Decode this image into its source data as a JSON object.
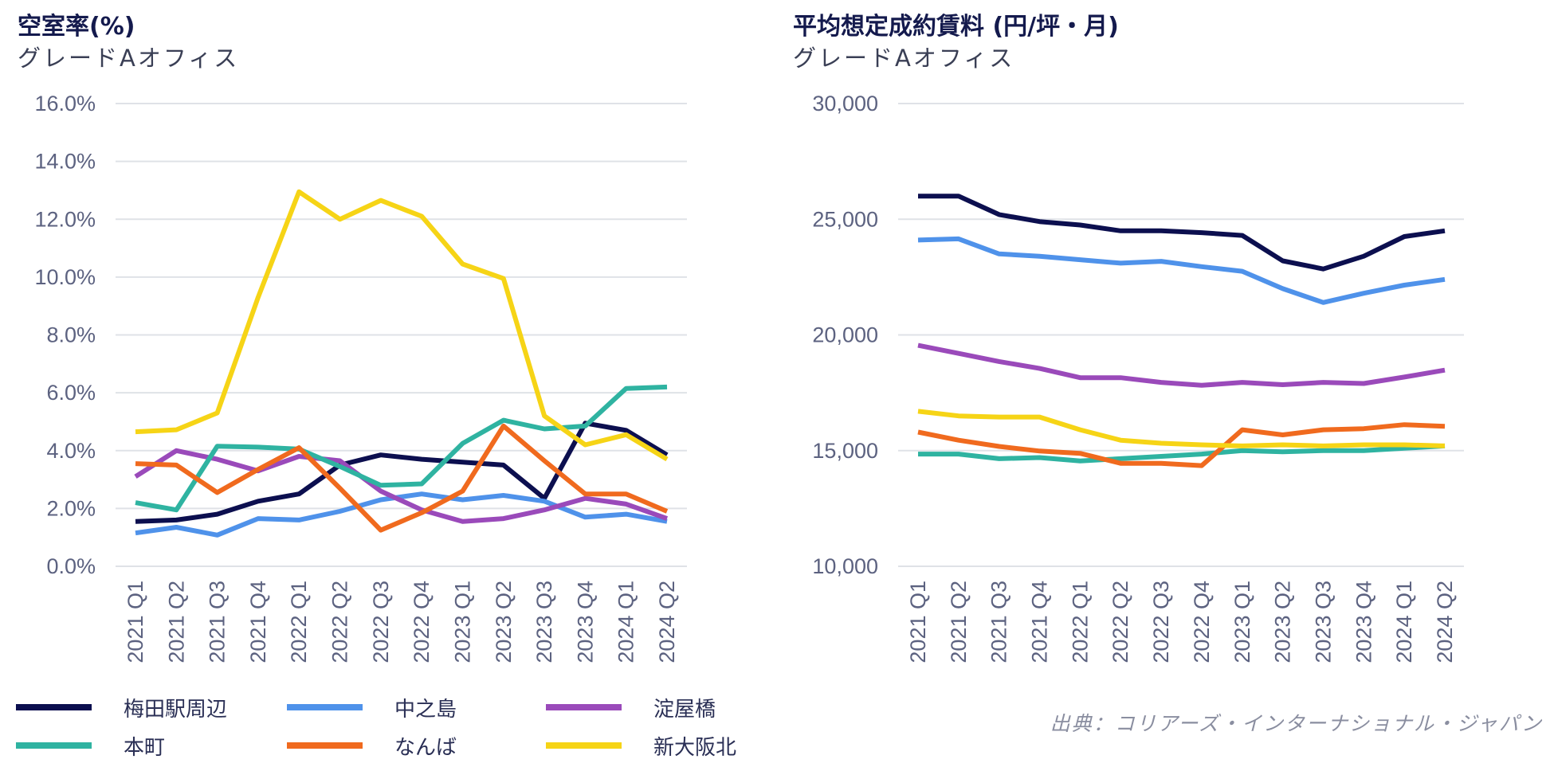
{
  "colors": {
    "umeda": "#0c0f4f",
    "nakanoshima": "#4f92ea",
    "yodoyabashi": "#9a4aba",
    "honmachi": "#2fb3a1",
    "namba": "#f06a1e",
    "shinosaka": "#f6d416",
    "grid": "#dfe2e7"
  },
  "legend": {
    "items": [
      {
        "key": "umeda",
        "label": "梅田駅周辺"
      },
      {
        "key": "nakanoshima",
        "label": "中之島"
      },
      {
        "key": "yodoyabashi",
        "label": "淀屋橋"
      },
      {
        "key": "honmachi",
        "label": "本町"
      },
      {
        "key": "namba",
        "label": "なんば"
      },
      {
        "key": "shinosaka",
        "label": "新大阪北"
      }
    ]
  },
  "source": "出典：コリアーズ・インターナショナル・ジャパン",
  "chart_data": [
    {
      "type": "line",
      "title": "空室率(%)",
      "subtitle": "グレードAオフィス",
      "categories": [
        "2021 Q1",
        "2021 Q2",
        "2021 Q3",
        "2021 Q4",
        "2022 Q1",
        "2022 Q2",
        "2022 Q3",
        "2022 Q4",
        "2023 Q1",
        "2023 Q2",
        "2023 Q3",
        "2023 Q4",
        "2024 Q1",
        "2024 Q2"
      ],
      "ylim": [
        0,
        16
      ],
      "yticks": [
        0,
        2,
        4,
        6,
        8,
        10,
        12,
        14,
        16
      ],
      "ytick_labels": [
        "0.0%",
        "2.0%",
        "4.0%",
        "6.0%",
        "8.0%",
        "10.0%",
        "12.0%",
        "14.0%",
        "16.0%"
      ],
      "grid": true,
      "series": [
        {
          "key": "umeda",
          "name": "梅田駅周辺",
          "values": [
            1.55,
            1.6,
            1.8,
            2.25,
            2.5,
            3.5,
            3.85,
            3.7,
            3.6,
            3.5,
            2.35,
            4.95,
            4.7,
            3.85
          ]
        },
        {
          "key": "nakanoshima",
          "name": "中之島",
          "values": [
            1.15,
            1.35,
            1.08,
            1.65,
            1.6,
            1.9,
            2.3,
            2.5,
            2.3,
            2.45,
            2.25,
            1.7,
            1.8,
            1.55
          ]
        },
        {
          "key": "yodoyabashi",
          "name": "淀屋橋",
          "values": [
            3.1,
            4.0,
            3.7,
            3.3,
            3.8,
            3.65,
            2.6,
            1.95,
            1.55,
            1.65,
            1.95,
            2.35,
            2.15,
            1.65
          ]
        },
        {
          "key": "honmachi",
          "name": "本町",
          "values": [
            2.2,
            1.95,
            4.15,
            4.12,
            4.05,
            3.45,
            2.8,
            2.85,
            4.25,
            5.05,
            4.75,
            4.85,
            6.15,
            6.2
          ]
        },
        {
          "key": "namba",
          "name": "なんば",
          "values": [
            3.55,
            3.5,
            2.55,
            3.35,
            4.1,
            2.7,
            1.25,
            1.85,
            2.6,
            4.85,
            3.65,
            2.5,
            2.5,
            1.9
          ]
        },
        {
          "key": "shinosaka",
          "name": "新大阪北",
          "values": [
            4.65,
            4.72,
            5.3,
            9.3,
            12.95,
            12.0,
            12.65,
            12.1,
            10.45,
            9.95,
            5.2,
            4.2,
            4.55,
            3.7
          ]
        }
      ]
    },
    {
      "type": "line",
      "title": "平均想定成約賃料 (円/坪・月)",
      "subtitle": "グレードAオフィス",
      "categories": [
        "2021 Q1",
        "2021 Q2",
        "2021 Q3",
        "2021 Q4",
        "2022 Q1",
        "2022 Q2",
        "2022 Q3",
        "2022 Q4",
        "2023 Q1",
        "2023 Q2",
        "2023 Q3",
        "2023 Q4",
        "2024 Q1",
        "2024 Q2"
      ],
      "ylim": [
        10000,
        30000
      ],
      "yticks": [
        10000,
        15000,
        20000,
        25000,
        30000
      ],
      "ytick_labels": [
        "10,000",
        "15,000",
        "20,000",
        "25,000",
        "30,000"
      ],
      "grid": true,
      "series": [
        {
          "key": "umeda",
          "name": "梅田駅周辺",
          "values": [
            26000,
            26000,
            25200,
            24900,
            24750,
            24500,
            24500,
            24420,
            24300,
            23200,
            22850,
            23400,
            24250,
            24500
          ]
        },
        {
          "key": "nakanoshima",
          "name": "中之島",
          "values": [
            24100,
            24150,
            23500,
            23400,
            23250,
            23100,
            23180,
            22950,
            22750,
            22000,
            21400,
            21800,
            22150,
            22400
          ]
        },
        {
          "key": "yodoyabashi",
          "name": "淀屋橋",
          "values": [
            19550,
            19200,
            18850,
            18550,
            18150,
            18150,
            17950,
            17820,
            17950,
            17850,
            17950,
            17900,
            18180,
            18480
          ]
        },
        {
          "key": "honmachi",
          "name": "本町",
          "values": [
            14850,
            14850,
            14650,
            14700,
            14550,
            14650,
            14750,
            14850,
            15000,
            14950,
            15000,
            15000,
            15100,
            15200
          ]
        },
        {
          "key": "namba",
          "name": "なんば",
          "values": [
            15800,
            15450,
            15180,
            14980,
            14880,
            14450,
            14450,
            14350,
            15900,
            15680,
            15900,
            15950,
            16120,
            16050
          ]
        },
        {
          "key": "shinosaka",
          "name": "新大阪北",
          "values": [
            16700,
            16500,
            16450,
            16450,
            15900,
            15450,
            15320,
            15250,
            15200,
            15250,
            15200,
            15250,
            15250,
            15200
          ]
        }
      ]
    }
  ]
}
